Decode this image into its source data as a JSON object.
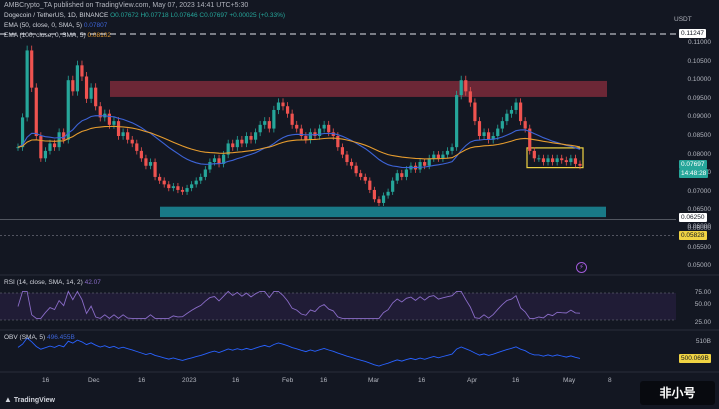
{
  "header": {
    "publish_line": "AMBCrypto_TA published on TradingView.com, May 07, 2023 14:41 UTC+5:30"
  },
  "axis": {
    "currency": "USDT",
    "price_ticks": [
      "0.11000",
      "0.10500",
      "0.10000",
      "0.09500",
      "0.09000",
      "0.08500",
      "0.08000",
      "0.07500",
      "0.07000",
      "0.06500",
      "0.06000",
      "0.05500",
      "0.05000"
    ],
    "x_labels": [
      "16",
      "Dec",
      "16",
      "2023",
      "16",
      "Feb",
      "16",
      "Mar",
      "16",
      "Apr",
      "16",
      "May",
      "8"
    ]
  },
  "price_tags": {
    "top_line": "0.11247",
    "current_price": "0.07697",
    "countdown": "14:48:28",
    "level_1": "0.06250",
    "level_2": "0.05828",
    "level_3": "0.06000"
  },
  "legend": {
    "symbol": "Dogecoin / TetherUS, 1D, BINANCE",
    "ohlc": "O0.07672 H0.07718 L0.07646 C0.07697 +0.00025 (+0.33%)",
    "ema50": "EMA (50, close, 0, SMA, 5)",
    "ema50_value": "0.07807",
    "ema100": "EMA (100, close, 0, SMA, 5)",
    "ema100_value": "0.08102"
  },
  "rsi": {
    "label": "RSI (14, close, SMA, 14, 2)",
    "value": "42.07",
    "ticks": [
      "75.00",
      "50.00",
      "25.00"
    ]
  },
  "obv": {
    "label": "OBV (SMA, 5)",
    "value": "496.455B",
    "tick": "510B",
    "current": "500.069B"
  },
  "footer": {
    "brand": "TradingView",
    "watermark": "非小号"
  },
  "colors": {
    "bg": "#131722",
    "up": "#26a69a",
    "down": "#ef5350",
    "ema50": "#3d64d8",
    "ema100": "#e69c2e",
    "resistance_zone": "#7c2a3a",
    "support_zone": "#1b8b99",
    "range_box": "#f0d343",
    "rsi_line": "#8a6cc8",
    "obv_line": "#2962ff"
  }
}
